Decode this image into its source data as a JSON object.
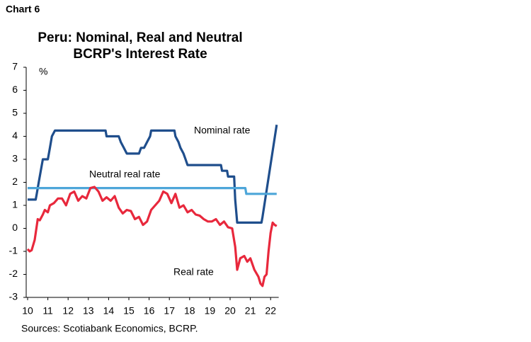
{
  "header": "Chart 6",
  "chart_data": {
    "type": "line",
    "title": [
      "Peru: Nominal, Real and Neutral",
      "BCRP's Interest Rate"
    ],
    "y_label": "%",
    "xlim": [
      10,
      22.4
    ],
    "xticks": [
      10,
      11,
      12,
      13,
      14,
      15,
      16,
      17,
      18,
      19,
      20,
      21,
      22
    ],
    "ylim": [
      -3,
      7
    ],
    "yticks": [
      -3,
      -2,
      -1,
      0,
      1,
      2,
      3,
      4,
      5,
      6,
      7
    ],
    "grid": false,
    "series": [
      {
        "name": "Nominal rate",
        "color": "#1f4e8c",
        "x": [
          10,
          10.4,
          10.45,
          10.55,
          10.65,
          10.75,
          11.0,
          11.1,
          11.2,
          11.35,
          13.85,
          13.9,
          14.5,
          14.6,
          14.75,
          14.9,
          15.5,
          15.6,
          15.75,
          15.9,
          16.05,
          16.1,
          17.25,
          17.3,
          17.45,
          17.55,
          17.7,
          17.8,
          17.9,
          18.1,
          19.55,
          19.6,
          19.85,
          19.9,
          20.2,
          20.25,
          20.35,
          21.55,
          21.6,
          22.3
        ],
        "values": [
          1.25,
          1.25,
          1.5,
          2,
          2.5,
          3,
          3,
          3.5,
          4,
          4.25,
          4.25,
          4,
          4,
          3.75,
          3.5,
          3.25,
          3.25,
          3.5,
          3.5,
          3.75,
          4,
          4.25,
          4.25,
          4,
          3.75,
          3.5,
          3.25,
          3,
          2.75,
          2.75,
          2.75,
          2.5,
          2.5,
          2.25,
          2.25,
          1.25,
          0.25,
          0.25,
          0.5,
          4.5
        ]
      },
      {
        "name": "Neutral real rate",
        "color": "#4da6d9",
        "x": [
          10,
          20.75,
          20.8,
          22.3
        ],
        "values": [
          1.75,
          1.75,
          1.5,
          1.5
        ]
      },
      {
        "name": "Real rate",
        "color": "#e8283c",
        "x": [
          10.0,
          10.1,
          10.2,
          10.35,
          10.5,
          10.6,
          10.75,
          10.85,
          11.0,
          11.1,
          11.3,
          11.5,
          11.7,
          11.9,
          12.1,
          12.3,
          12.5,
          12.7,
          12.9,
          13.1,
          13.3,
          13.5,
          13.7,
          13.9,
          14.1,
          14.3,
          14.5,
          14.7,
          14.9,
          15.1,
          15.3,
          15.5,
          15.7,
          15.9,
          16.1,
          16.3,
          16.5,
          16.7,
          16.9,
          17.1,
          17.3,
          17.5,
          17.7,
          17.9,
          18.1,
          18.3,
          18.5,
          18.7,
          18.9,
          19.1,
          19.3,
          19.5,
          19.7,
          19.9,
          20.1,
          20.25,
          20.35,
          20.5,
          20.7,
          20.85,
          21.0,
          21.2,
          21.4,
          21.5,
          21.6,
          21.7,
          21.8,
          21.9,
          22.0,
          22.1,
          22.2,
          22.3
        ],
        "values": [
          -0.9,
          -1.0,
          -0.95,
          -0.5,
          0.4,
          0.35,
          0.6,
          0.8,
          0.7,
          1.0,
          1.1,
          1.3,
          1.3,
          1.0,
          1.5,
          1.6,
          1.2,
          1.4,
          1.3,
          1.75,
          1.8,
          1.6,
          1.2,
          1.35,
          1.2,
          1.4,
          0.9,
          0.65,
          0.8,
          0.75,
          0.4,
          0.5,
          0.15,
          0.3,
          0.8,
          1.0,
          1.2,
          1.6,
          1.5,
          1.1,
          1.5,
          0.9,
          1.0,
          0.7,
          0.8,
          0.6,
          0.55,
          0.4,
          0.3,
          0.3,
          0.4,
          0.15,
          0.3,
          0.05,
          0.0,
          -0.8,
          -1.8,
          -1.3,
          -1.2,
          -1.45,
          -1.3,
          -1.8,
          -2.1,
          -2.4,
          -2.5,
          -2.1,
          -2.0,
          -1.0,
          -0.2,
          0.25,
          0.15,
          0.1
        ]
      }
    ]
  },
  "source": "Sources: Scotiabank Economics, BCRP."
}
